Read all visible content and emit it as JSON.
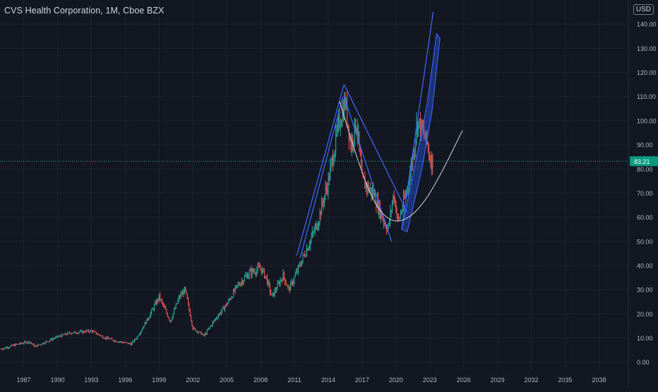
{
  "header": {
    "title": "CVS Health Corporation, 1M, Cboe BZX",
    "currency": "USD"
  },
  "colors": {
    "background": "#131722",
    "grid": "#1e222d",
    "axis_text": "#b2b5be",
    "candle_up": "#26a69a",
    "candle_down": "#ef5350",
    "drawing_blue": "#2962ff",
    "drawing_blue_line": "#3f6bff",
    "arc_white": "#d1d4dc",
    "price_line": "#26a69a",
    "price_label_bg": "#089981"
  },
  "chart_data": {
    "type": "candlestick",
    "timeframe": "1M",
    "title": "CVS Health Corporation, 1M, Cboe BZX",
    "x_tick_labels": [
      "1987",
      "1990",
      "1993",
      "1996",
      "1999",
      "2002",
      "2005",
      "2008",
      "2011",
      "2014",
      "2017",
      "2020",
      "2023",
      "2026",
      "2029",
      "2032",
      "2035",
      "2038"
    ],
    "y_tick_labels": [
      "0.00",
      "10.00",
      "20.00",
      "30.00",
      "40.00",
      "50.00",
      "60.00",
      "70.00",
      "80.00",
      "90.00",
      "100.00",
      "110.00",
      "120.00",
      "130.00",
      "140.00"
    ],
    "xlim": [
      1984.9,
      2040.6
    ],
    "ylim": [
      -3,
      150
    ],
    "grid": true,
    "current_price": 83.21,
    "current_price_label": "83.21",
    "price_path": [
      [
        1985.0,
        5.5
      ],
      [
        1986.5,
        7.5
      ],
      [
        1987.5,
        8.5
      ],
      [
        1988.0,
        6.5
      ],
      [
        1989.0,
        8.5
      ],
      [
        1990.0,
        10.5
      ],
      [
        1991.0,
        12.0
      ],
      [
        1992.0,
        12.5
      ],
      [
        1993.0,
        13.0
      ],
      [
        1994.0,
        10.5
      ],
      [
        1995.0,
        9.0
      ],
      [
        1996.0,
        8.0
      ],
      [
        1996.5,
        7.5
      ],
      [
        1997.0,
        10.0
      ],
      [
        1998.0,
        18.0
      ],
      [
        1999.0,
        27.0
      ],
      [
        2000.0,
        17.0
      ],
      [
        2000.8,
        27.0
      ],
      [
        2001.3,
        30.0
      ],
      [
        2002.0,
        14.0
      ],
      [
        2003.0,
        11.0
      ],
      [
        2004.0,
        18.0
      ],
      [
        2005.0,
        24.0
      ],
      [
        2006.0,
        32.0
      ],
      [
        2007.0,
        37.0
      ],
      [
        2008.0,
        39.0
      ],
      [
        2008.5,
        35.0
      ],
      [
        2009.0,
        27.0
      ],
      [
        2010.0,
        36.0
      ],
      [
        2010.5,
        30.0
      ],
      [
        2011.0,
        35.0
      ],
      [
        2012.0,
        46.0
      ],
      [
        2013.0,
        57.0
      ],
      [
        2014.0,
        75.0
      ],
      [
        2015.0,
        100.0
      ],
      [
        2015.5,
        108.0
      ],
      [
        2016.0,
        90.0
      ],
      [
        2016.5,
        100.0
      ],
      [
        2017.0,
        75.0
      ],
      [
        2018.0,
        70.0
      ],
      [
        2018.8,
        60.0
      ],
      [
        2019.3,
        55.0
      ],
      [
        2019.8,
        70.0
      ],
      [
        2020.2,
        58.0
      ],
      [
        2020.5,
        63.0
      ],
      [
        2021.0,
        72.0
      ],
      [
        2021.5,
        85.0
      ],
      [
        2021.9,
        100.0
      ],
      [
        2022.4,
        95.0
      ],
      [
        2022.8,
        90.0
      ],
      [
        2023.0,
        85.0
      ],
      [
        2023.3,
        83.21
      ]
    ],
    "drawings": [
      {
        "name": "rise-line",
        "points": [
          [
            2011.2,
            44
          ],
          [
            2015.4,
            115
          ]
        ]
      },
      {
        "name": "fall-line",
        "points": [
          [
            2015.4,
            115
          ],
          [
            2021.0,
            62
          ]
        ]
      },
      {
        "name": "inner-rise",
        "points": [
          [
            2011.5,
            43
          ],
          [
            2015.3,
            110
          ]
        ]
      },
      {
        "name": "inner-fall",
        "points": [
          [
            2015.4,
            110
          ],
          [
            2019.6,
            50
          ]
        ]
      },
      {
        "name": "breakout-line",
        "points": [
          [
            2020.5,
            55
          ],
          [
            2023.3,
            145
          ]
        ]
      }
    ],
    "cup_arc": {
      "points": [
        [
          2015.0,
          108
        ],
        [
          2016.5,
          85
        ],
        [
          2018.0,
          66
        ],
        [
          2019.5,
          58
        ],
        [
          2021.0,
          59
        ],
        [
          2022.5,
          66
        ],
        [
          2024.0,
          78
        ],
        [
          2025.9,
          96
        ]
      ]
    },
    "projection_channel": {
      "points": [
        [
          2020.5,
          55
        ],
        [
          2021.8,
          84
        ],
        [
          2022.8,
          108
        ],
        [
          2023.6,
          136
        ],
        [
          2023.9,
          134
        ],
        [
          2023.2,
          104
        ],
        [
          2022.3,
          80
        ],
        [
          2021.0,
          54
        ]
      ]
    }
  }
}
